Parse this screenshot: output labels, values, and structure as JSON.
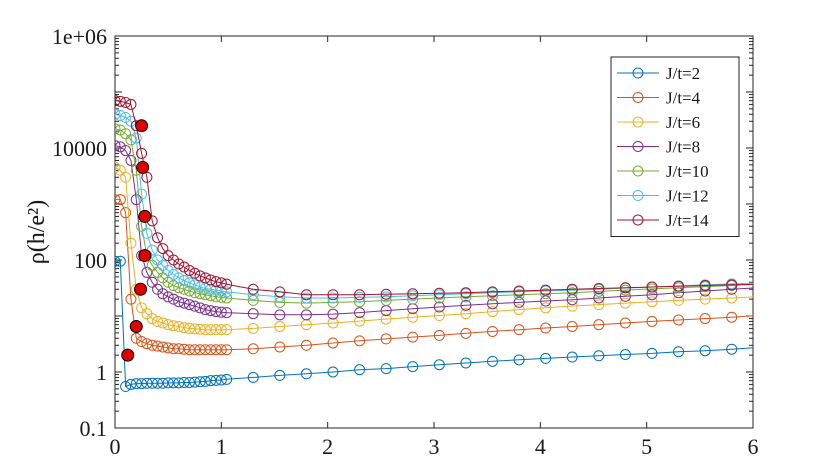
{
  "chart_data": {
    "type": "line",
    "ylabel": "ρ(h/e²)",
    "xlabel": "",
    "xlim": [
      0,
      6
    ],
    "ylim": [
      0.1,
      1000000
    ],
    "yscale": "log",
    "xticks": [
      "0",
      "1",
      "2",
      "3",
      "4",
      "5",
      "6"
    ],
    "yticks": [
      "0.1",
      "1",
      "100",
      "10000",
      "1e+06"
    ],
    "ytick_values": [
      0.1,
      1,
      100,
      10000,
      1000000
    ],
    "legend_position": "top-right",
    "grid": false,
    "marker": "open-circle",
    "x": [
      0.0,
      0.05,
      0.1,
      0.15,
      0.2,
      0.25,
      0.3,
      0.35,
      0.4,
      0.45,
      0.5,
      0.55,
      0.6,
      0.65,
      0.7,
      0.75,
      0.8,
      0.85,
      0.9,
      0.95,
      1.0,
      1.05,
      1.3,
      1.55,
      1.8,
      2.05,
      2.3,
      2.55,
      2.8,
      3.05,
      3.3,
      3.55,
      3.8,
      4.05,
      4.3,
      4.55,
      4.8,
      5.05,
      5.3,
      5.55,
      5.8,
      6.05
    ],
    "series": [
      {
        "name": "J/t=2",
        "color": "#0072BD",
        "values": [
          95,
          95,
          0.55,
          0.6,
          0.62,
          0.62,
          0.63,
          0.63,
          0.63,
          0.63,
          0.64,
          0.64,
          0.64,
          0.65,
          0.65,
          0.66,
          0.67,
          0.68,
          0.7,
          0.71,
          0.72,
          0.74,
          0.8,
          0.87,
          0.93,
          1.0,
          1.1,
          1.15,
          1.25,
          1.35,
          1.45,
          1.55,
          1.65,
          1.75,
          1.85,
          1.95,
          2.05,
          2.15,
          2.3,
          2.4,
          2.55,
          2.75
        ]
      },
      {
        "name": "J/t=4",
        "color": "#D95319",
        "values": [
          1200,
          1200,
          700,
          20,
          4.0,
          3.5,
          3.2,
          3.0,
          2.9,
          2.8,
          2.7,
          2.6,
          2.6,
          2.55,
          2.5,
          2.5,
          2.5,
          2.5,
          2.5,
          2.5,
          2.5,
          2.5,
          2.6,
          2.8,
          3.0,
          3.3,
          3.6,
          3.9,
          4.2,
          4.5,
          4.9,
          5.3,
          5.7,
          6.1,
          6.5,
          7.0,
          7.5,
          8.0,
          8.5,
          9.0,
          9.5,
          10.2
        ]
      },
      {
        "name": "J/t=6",
        "color": "#EDB120",
        "values": [
          4500,
          4000,
          3000,
          200,
          30,
          14,
          11,
          9,
          8,
          7.5,
          7,
          6.7,
          6.5,
          6.2,
          6.0,
          5.9,
          5.8,
          5.7,
          5.7,
          5.7,
          5.7,
          5.7,
          6.0,
          6.5,
          7.0,
          7.5,
          8.1,
          8.8,
          9.5,
          10.2,
          11,
          12,
          13,
          14,
          15,
          16,
          17,
          18,
          19,
          20,
          21,
          22
        ]
      },
      {
        "name": "J/t=8",
        "color": "#7E2F8E",
        "values": [
          11000,
          10500,
          9000,
          6000,
          1200,
          120,
          60,
          40,
          30,
          25,
          22,
          20,
          18,
          17,
          16,
          15,
          14,
          13,
          12.5,
          12,
          11.7,
          11.5,
          11,
          10.5,
          10.5,
          10.8,
          11.5,
          12.5,
          13.5,
          14.5,
          15.5,
          16.5,
          17.5,
          18.5,
          19.5,
          21,
          22.5,
          24,
          26,
          28,
          30,
          32
        ]
      },
      {
        "name": "J/t=10",
        "color": "#77AC30",
        "values": [
          22000,
          21000,
          18000,
          14000,
          4000,
          400,
          120,
          80,
          60,
          48,
          40,
          35,
          32,
          30,
          28,
          26,
          25,
          24,
          23,
          22,
          21.5,
          21,
          19,
          17.5,
          17,
          17.5,
          18,
          19,
          20,
          21,
          22,
          23,
          24,
          25,
          26,
          27.5,
          29,
          30.5,
          32,
          33.5,
          35,
          37
        ]
      },
      {
        "name": "J/t=12",
        "color": "#4DBEEE",
        "values": [
          40000,
          38000,
          35000,
          30000,
          15000,
          1500,
          300,
          150,
          100,
          80,
          65,
          55,
          48,
          43,
          39,
          36,
          33,
          31,
          30,
          29,
          28,
          27,
          24,
          22,
          21,
          21,
          21.5,
          22,
          23,
          24,
          25,
          26,
          27,
          28,
          29,
          30,
          31.5,
          33,
          34.5,
          36,
          37.5,
          39
        ]
      },
      {
        "name": "J/t=14",
        "color": "#A2142F",
        "values": [
          70000,
          68000,
          65000,
          60000,
          25000,
          8000,
          3000,
          500,
          250,
          160,
          120,
          100,
          85,
          75,
          65,
          58,
          52,
          48,
          44,
          41,
          39,
          37,
          30,
          27,
          24,
          24,
          24,
          24.5,
          25,
          25.5,
          26,
          27,
          28,
          29,
          30,
          31,
          32,
          33,
          34,
          35,
          36,
          37
        ]
      }
    ],
    "highlight_points": {
      "color": "#E00000",
      "points": [
        {
          "x": 0.12,
          "y": 2.0
        },
        {
          "x": 0.2,
          "y": 6.5
        },
        {
          "x": 0.24,
          "y": 30
        },
        {
          "x": 0.28,
          "y": 120
        },
        {
          "x": 0.28,
          "y": 600
        },
        {
          "x": 0.26,
          "y": 4500
        },
        {
          "x": 0.25,
          "y": 25000
        }
      ]
    }
  }
}
